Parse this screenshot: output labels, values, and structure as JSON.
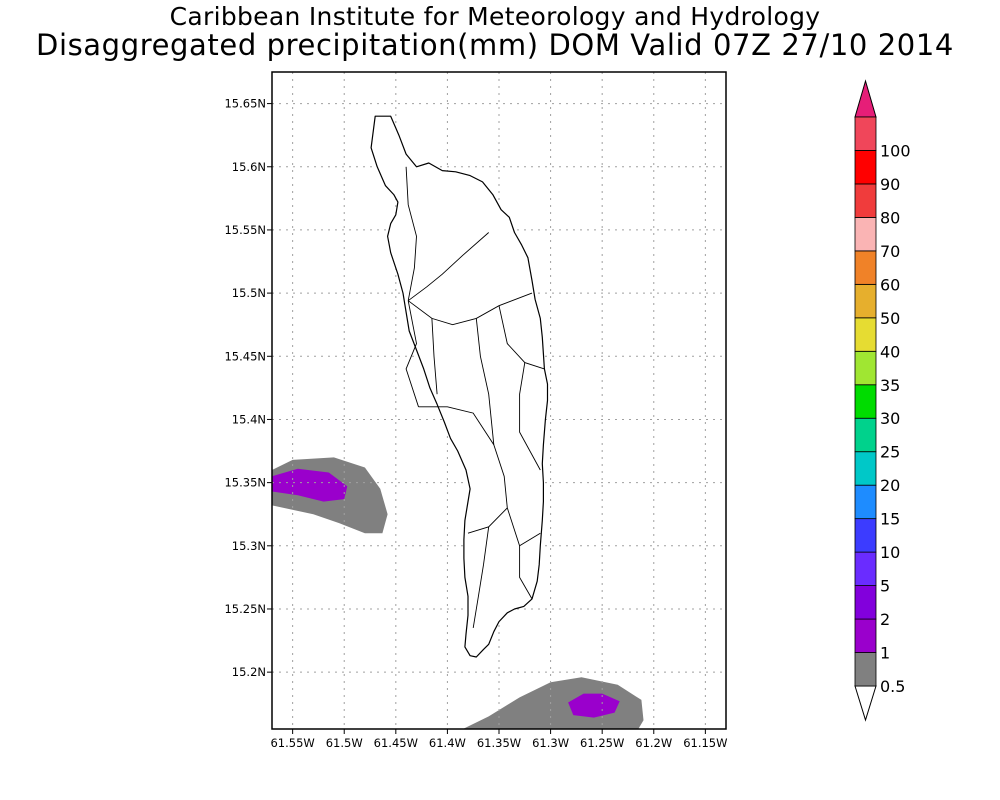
{
  "title": {
    "line1": "Caribbean Institute for Meteorology and Hydrology",
    "line2": "Disaggregated precipitation(mm) DOM Valid 07Z 27/10 2014"
  },
  "map": {
    "lon_range": [
      -61.57,
      -61.13
    ],
    "lat_range": [
      15.155,
      15.675
    ],
    "lon_ticks": [
      {
        "value": -61.55,
        "label": "61.55W"
      },
      {
        "value": -61.5,
        "label": "61.5W"
      },
      {
        "value": -61.45,
        "label": "61.45W"
      },
      {
        "value": -61.4,
        "label": "61.4W"
      },
      {
        "value": -61.35,
        "label": "61.35W"
      },
      {
        "value": -61.3,
        "label": "61.3W"
      },
      {
        "value": -61.25,
        "label": "61.25W"
      },
      {
        "value": -61.2,
        "label": "61.2W"
      },
      {
        "value": -61.15,
        "label": "61.15W"
      }
    ],
    "lat_ticks": [
      {
        "value": 15.2,
        "label": "15.2N"
      },
      {
        "value": 15.25,
        "label": "15.25N"
      },
      {
        "value": 15.3,
        "label": "15.3N"
      },
      {
        "value": 15.35,
        "label": "15.35N"
      },
      {
        "value": 15.4,
        "label": "15.4N"
      },
      {
        "value": 15.45,
        "label": "15.45N"
      },
      {
        "value": 15.5,
        "label": "15.5N"
      },
      {
        "value": 15.55,
        "label": "15.55N"
      },
      {
        "value": 15.6,
        "label": "15.6N"
      },
      {
        "value": 15.65,
        "label": "15.65N"
      }
    ],
    "grid": true,
    "island_outline": [
      [
        -61.47,
        15.64
      ],
      [
        -61.455,
        15.64
      ],
      [
        -61.447,
        15.625
      ],
      [
        -61.44,
        15.61
      ],
      [
        -61.43,
        15.6
      ],
      [
        -61.418,
        15.603
      ],
      [
        -61.405,
        15.597
      ],
      [
        -61.392,
        15.596
      ],
      [
        -61.378,
        15.593
      ],
      [
        -61.366,
        15.588
      ],
      [
        -61.356,
        15.578
      ],
      [
        -61.348,
        15.566
      ],
      [
        -61.34,
        15.56
      ],
      [
        -61.335,
        15.548
      ],
      [
        -61.328,
        15.538
      ],
      [
        -61.322,
        15.528
      ],
      [
        -61.318,
        15.51
      ],
      [
        -61.315,
        15.495
      ],
      [
        -61.31,
        15.48
      ],
      [
        -61.308,
        15.465
      ],
      [
        -61.307,
        15.452
      ],
      [
        -61.306,
        15.44
      ],
      [
        -61.303,
        15.428
      ],
      [
        -61.303,
        15.415
      ],
      [
        -61.305,
        15.4
      ],
      [
        -61.307,
        15.38
      ],
      [
        -61.308,
        15.365
      ],
      [
        -61.307,
        15.35
      ],
      [
        -61.307,
        15.335
      ],
      [
        -61.308,
        15.32
      ],
      [
        -61.31,
        15.3
      ],
      [
        -61.311,
        15.285
      ],
      [
        -61.313,
        15.272
      ],
      [
        -61.318,
        15.258
      ],
      [
        -61.326,
        15.252
      ],
      [
        -61.335,
        15.25
      ],
      [
        -61.342,
        15.247
      ],
      [
        -61.35,
        15.24
      ],
      [
        -61.355,
        15.232
      ],
      [
        -61.36,
        15.222
      ],
      [
        -61.365,
        15.218
      ],
      [
        -61.372,
        15.212
      ],
      [
        -61.378,
        15.213
      ],
      [
        -61.383,
        15.22
      ],
      [
        -61.382,
        15.23
      ],
      [
        -61.38,
        15.245
      ],
      [
        -61.38,
        15.26
      ],
      [
        -61.383,
        15.275
      ],
      [
        -61.384,
        15.29
      ],
      [
        -61.384,
        15.305
      ],
      [
        -61.383,
        15.32
      ],
      [
        -61.38,
        15.335
      ],
      [
        -61.378,
        15.345
      ],
      [
        -61.382,
        15.36
      ],
      [
        -61.39,
        15.375
      ],
      [
        -61.397,
        15.385
      ],
      [
        -61.403,
        15.398
      ],
      [
        -61.41,
        15.412
      ],
      [
        -61.417,
        15.425
      ],
      [
        -61.423,
        15.44
      ],
      [
        -61.43,
        15.455
      ],
      [
        -61.437,
        15.47
      ],
      [
        -61.44,
        15.485
      ],
      [
        -61.443,
        15.5
      ],
      [
        -61.448,
        15.515
      ],
      [
        -61.455,
        15.532
      ],
      [
        -61.458,
        15.545
      ],
      [
        -61.455,
        15.555
      ],
      [
        -61.45,
        15.562
      ],
      [
        -61.448,
        15.572
      ],
      [
        -61.452,
        15.578
      ],
      [
        -61.46,
        15.585
      ],
      [
        -61.468,
        15.6
      ],
      [
        -61.474,
        15.615
      ],
      [
        -61.47,
        15.64
      ]
    ],
    "watershed_lines": [
      [
        [
          -61.438,
          15.494
        ],
        [
          -61.42,
          15.505
        ],
        [
          -61.405,
          15.515
        ],
        [
          -61.385,
          15.53
        ],
        [
          -61.36,
          15.548
        ]
      ],
      [
        [
          -61.438,
          15.494
        ],
        [
          -61.432,
          15.52
        ],
        [
          -61.43,
          15.545
        ],
        [
          -61.438,
          15.57
        ],
        [
          -61.44,
          15.6
        ]
      ],
      [
        [
          -61.438,
          15.494
        ],
        [
          -61.415,
          15.48
        ],
        [
          -61.395,
          15.475
        ],
        [
          -61.372,
          15.48
        ],
        [
          -61.35,
          15.49
        ],
        [
          -61.318,
          15.5
        ]
      ],
      [
        [
          -61.438,
          15.494
        ],
        [
          -61.43,
          15.46
        ],
        [
          -61.44,
          15.44
        ],
        [
          -61.428,
          15.41
        ]
      ],
      [
        [
          -61.428,
          15.41
        ],
        [
          -61.4,
          15.41
        ],
        [
          -61.375,
          15.405
        ],
        [
          -61.355,
          15.38
        ],
        [
          -61.345,
          15.355
        ],
        [
          -61.342,
          15.33
        ]
      ],
      [
        [
          -61.415,
          15.48
        ],
        [
          -61.413,
          15.45
        ],
        [
          -61.41,
          15.42
        ]
      ],
      [
        [
          -61.372,
          15.48
        ],
        [
          -61.368,
          15.45
        ],
        [
          -61.36,
          15.42
        ],
        [
          -61.355,
          15.38
        ]
      ],
      [
        [
          -61.342,
          15.33
        ],
        [
          -61.36,
          15.315
        ],
        [
          -61.38,
          15.31
        ]
      ],
      [
        [
          -61.342,
          15.33
        ],
        [
          -61.33,
          15.3
        ],
        [
          -61.33,
          15.275
        ],
        [
          -61.318,
          15.258
        ]
      ],
      [
        [
          -61.33,
          15.3
        ],
        [
          -61.31,
          15.31
        ]
      ],
      [
        [
          -61.36,
          15.315
        ],
        [
          -61.365,
          15.285
        ],
        [
          -61.37,
          15.26
        ],
        [
          -61.375,
          15.235
        ]
      ],
      [
        [
          -61.35,
          15.49
        ],
        [
          -61.342,
          15.46
        ],
        [
          -61.325,
          15.445
        ],
        [
          -61.306,
          15.44
        ]
      ],
      [
        [
          -61.325,
          15.445
        ],
        [
          -61.33,
          15.42
        ],
        [
          -61.33,
          15.39
        ],
        [
          -61.31,
          15.36
        ]
      ]
    ],
    "precipitation_zones": [
      {
        "category": "0.5-1",
        "color": "#808080",
        "polygon": [
          [
            -61.57,
            15.36
          ],
          [
            -61.55,
            15.368
          ],
          [
            -61.51,
            15.37
          ],
          [
            -61.48,
            15.362
          ],
          [
            -61.465,
            15.345
          ],
          [
            -61.458,
            15.325
          ],
          [
            -61.463,
            15.31
          ],
          [
            -61.48,
            15.31
          ],
          [
            -61.505,
            15.318
          ],
          [
            -61.53,
            15.325
          ],
          [
            -61.57,
            15.332
          ]
        ]
      },
      {
        "category": "1-2",
        "color": "#9a00cc",
        "polygon": [
          [
            -61.57,
            15.355
          ],
          [
            -61.545,
            15.361
          ],
          [
            -61.515,
            15.358
          ],
          [
            -61.497,
            15.347
          ],
          [
            -61.5,
            15.337
          ],
          [
            -61.52,
            15.335
          ],
          [
            -61.545,
            15.34
          ],
          [
            -61.57,
            15.343
          ]
        ]
      },
      {
        "category": "0.5-1",
        "color": "#808080",
        "polygon": [
          [
            -61.385,
            15.155
          ],
          [
            -61.36,
            15.165
          ],
          [
            -61.33,
            15.18
          ],
          [
            -61.3,
            15.192
          ],
          [
            -61.27,
            15.196
          ],
          [
            -61.235,
            15.19
          ],
          [
            -61.212,
            15.178
          ],
          [
            -61.21,
            15.162
          ],
          [
            -61.215,
            15.155
          ]
        ]
      },
      {
        "category": "1-2",
        "color": "#9a00cc",
        "polygon": [
          [
            -61.283,
            15.176
          ],
          [
            -61.268,
            15.183
          ],
          [
            -61.25,
            15.183
          ],
          [
            -61.233,
            15.177
          ],
          [
            -61.238,
            15.168
          ],
          [
            -61.258,
            15.164
          ],
          [
            -61.278,
            15.166
          ]
        ]
      }
    ]
  },
  "colorbar": {
    "levels": [
      "0.5",
      "1",
      "2",
      "5",
      "10",
      "15",
      "20",
      "25",
      "30",
      "35",
      "40",
      "50",
      "60",
      "70",
      "80",
      "90",
      "100"
    ],
    "colors": [
      "#808080",
      "#9a00cc",
      "#8200dc",
      "#6a2cff",
      "#3c3cff",
      "#1e8cff",
      "#00c8c8",
      "#00d28c",
      "#00dc00",
      "#a0e632",
      "#e6dc32",
      "#e6af2d",
      "#f08228",
      "#fab4b4",
      "#f03c3c",
      "#ff0000",
      "#f0465a"
    ],
    "under_color": "#ffffff",
    "over_color": "#e61e78"
  }
}
